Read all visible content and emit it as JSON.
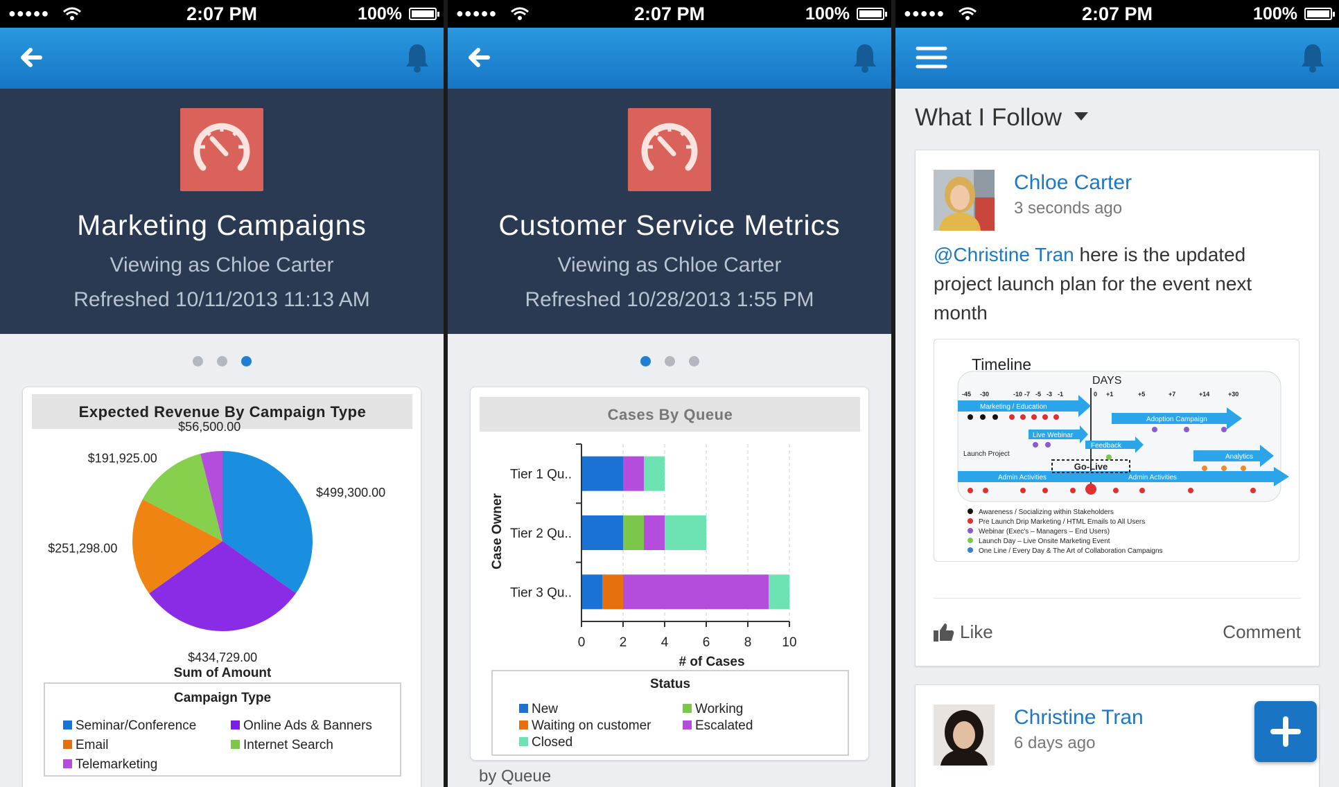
{
  "status_bar": {
    "signal": "●●●●●",
    "time": "2:07 PM",
    "battery": "100%"
  },
  "colors": {
    "nav_blue": "#1f88d8",
    "hero_navy": "#2a3a52",
    "logo_red": "#d9635a",
    "link_blue": "#1a77c9"
  },
  "icons": [
    "back-arrow-icon",
    "bell-icon",
    "menu-icon",
    "dashboard-gauge-icon",
    "like-icon",
    "plus-icon",
    "wifi-icon",
    "battery-icon"
  ],
  "screen1": {
    "title": "Marketing Campaigns",
    "viewing": "Viewing as Chloe Carter",
    "refreshed": "Refreshed 10/11/2013 11:13 AM",
    "page_dots": {
      "count": 3,
      "active": 3
    },
    "legend_title": "Campaign Type",
    "legend": [
      {
        "label": "Seminar/Conference",
        "color": "#1a72d4"
      },
      {
        "label": "Online Ads & Banners",
        "color": "#7a1fe0"
      },
      {
        "label": "Email",
        "color": "#e66f0e"
      },
      {
        "label": "Internet Search",
        "color": "#7cc64a"
      },
      {
        "label": "Telemarketing",
        "color": "#b54ddc"
      }
    ]
  },
  "screen2": {
    "title": "Customer Service Metrics",
    "viewing": "Viewing as Chloe Carter",
    "refreshed": "Refreshed 10/28/2013 1:55 PM",
    "page_dots": {
      "count": 3,
      "active": 1
    },
    "legend_title": "Status",
    "legend": [
      {
        "label": "New",
        "color": "#1a72d4"
      },
      {
        "label": "Working",
        "color": "#7cc64a"
      },
      {
        "label": "Waiting on customer",
        "color": "#e66f0e"
      },
      {
        "label": "Escalated",
        "color": "#b54ddc"
      },
      {
        "label": "Closed",
        "color": "#6de3b4"
      }
    ],
    "footer": "by Queue"
  },
  "screen3": {
    "feed_title": "What I Follow",
    "post1": {
      "user": "Chloe Carter",
      "time": "3 seconds ago",
      "mention": "@Christine Tran",
      "text": " here is the updated project launch plan for the event next month",
      "attachment": {
        "title": "Timeline",
        "days_label": "DAYS",
        "ticks": [
          "-45",
          "-30",
          "-10",
          "-7",
          "-5",
          "-3",
          "-1",
          "0",
          "+1",
          "+5",
          "+7",
          "+14",
          "+30"
        ],
        "arrows": [
          "Marketing / Education",
          "Adoption Campaign",
          "Live Webinar",
          "Feedback",
          "Analytics",
          "Admin Activities",
          "Admin Activities"
        ],
        "launch_label": "Launch Project",
        "golive": "Go-Live",
        "bullets": [
          {
            "text": "Awareness / Socializing within Stakeholders",
            "color": "#111111"
          },
          {
            "text": "Pre Launch Drip Marketing / HTML Emails to All Users",
            "color": "#e03030"
          },
          {
            "text": "Webinar (Exec's – Managers – End Users)",
            "color": "#8a5bd0"
          },
          {
            "text": "Launch Day – Live Onsite Marketing Event",
            "color": "#7cc64a"
          },
          {
            "text": "One Line / Every Day & The Art of Collaboration Campaigns",
            "color": "#3a7fd0"
          }
        ]
      },
      "like": "Like",
      "comment": "Comment"
    },
    "post2": {
      "user": "Christine Tran",
      "time": "6 days ago"
    }
  },
  "chart_data": [
    {
      "type": "pie",
      "title": "Expected Revenue By Campaign Type",
      "xlabel": "Sum of Amount",
      "categories": [
        "Seminar/Conference",
        "Online Ads & Banners",
        "Email",
        "Internet Search",
        "Telemarketing"
      ],
      "values": [
        499300.0,
        434729.0,
        251298.0,
        191925.0,
        56500.0
      ],
      "data_labels": [
        "$499,300.00",
        "$434,729.00",
        "$251,298.00",
        "$191,925.00",
        "$56,500.00"
      ],
      "colors": [
        "#1a8fe0",
        "#8a2be6",
        "#ef8412",
        "#86d04e",
        "#b54ddc"
      ],
      "legend": "bottom"
    },
    {
      "type": "bar",
      "orientation": "horizontal",
      "stacked": true,
      "title": "Cases By Queue",
      "xlabel": "# of Cases",
      "ylabel": "Case Owner",
      "categories": [
        "Tier 1 Qu..",
        "Tier 2 Qu..",
        "Tier 3 Qu.."
      ],
      "series": [
        {
          "name": "New",
          "values": [
            2,
            2,
            1
          ],
          "color": "#1a72d4"
        },
        {
          "name": "Waiting on customer",
          "values": [
            0,
            0,
            1
          ],
          "color": "#e66f0e"
        },
        {
          "name": "Working",
          "values": [
            0,
            1,
            0
          ],
          "color": "#7cc64a"
        },
        {
          "name": "Escalated",
          "values": [
            1,
            1,
            7
          ],
          "color": "#b54ddc"
        },
        {
          "name": "Closed",
          "values": [
            1,
            2,
            1
          ],
          "color": "#6de3b4"
        }
      ],
      "xlim": [
        0,
        10
      ],
      "xticks": [
        "0",
        "2",
        "4",
        "6",
        "8",
        "10"
      ],
      "grid": true,
      "legend": "bottom"
    }
  ]
}
